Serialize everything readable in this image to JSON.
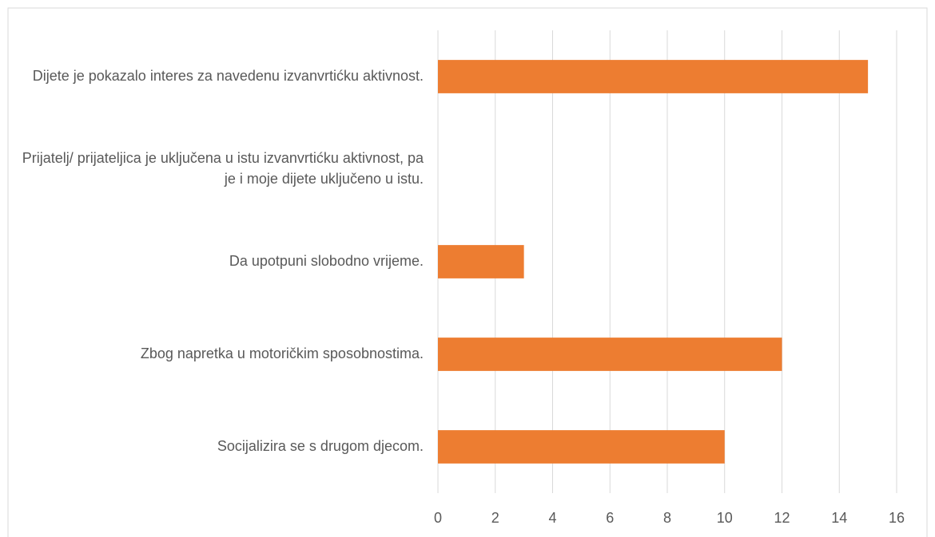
{
  "chart_data": {
    "type": "bar",
    "orientation": "horizontal",
    "categories": [
      "Dijete je pokazalo interes za navedenu izvanvrtićku aktivnost.",
      "Prijatelj/ prijateljica je uključena u istu izvanvrtićku aktivnost, pa je i moje dijete uključeno u istu.",
      "Da upotpuni slobodno vrijeme.",
      "Zbog napretka u motoričkim sposobnostima.",
      "Socijalizira se s drugom djecom."
    ],
    "values": [
      15,
      0,
      3,
      12,
      10
    ],
    "color": "#ed7d31",
    "xlim": [
      0,
      16
    ],
    "xticks": [
      0,
      2,
      4,
      6,
      8,
      10,
      12,
      14,
      16
    ],
    "grid": true
  }
}
